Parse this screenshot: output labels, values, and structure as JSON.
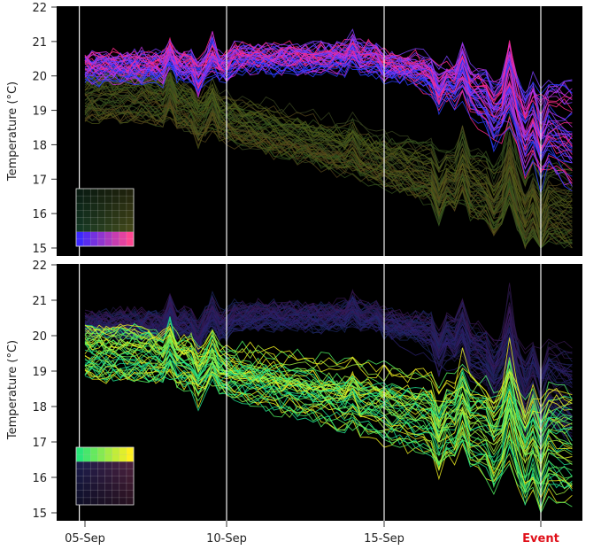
{
  "chart_data": [
    {
      "type": "line",
      "panel": "top",
      "title": "",
      "xlabel": "",
      "ylabel": "Temperature (°C)",
      "ylim": [
        15,
        22
      ],
      "yticks": [
        "15",
        "16",
        "17",
        "18",
        "19",
        "20",
        "21",
        "22"
      ],
      "xticks": [
        "05-Sep",
        "10-Sep",
        "15-Sep",
        "Event"
      ],
      "xtick_days": [
        0,
        5,
        10,
        15
      ],
      "xlim_days": [
        -0.5,
        16.2
      ],
      "vertical_lines_days": [
        -0.2,
        5,
        10,
        15
      ],
      "background": "#000000",
      "highlight": "blue-magenta",
      "legend_placement": "bottom-left",
      "highlight_colors": [
        "#2a3cff",
        "#7a40ff",
        "#c030e0",
        "#ff2a8a"
      ],
      "dim_colors": [
        "#3a5a20",
        "#55601a",
        "#5a4a1c",
        "#3c4a22"
      ],
      "series_profiles": {
        "highlight": {
          "start": [
            19.9,
            20.6
          ],
          "end": [
            16.7,
            19.7
          ]
        },
        "dim": {
          "start": [
            18.8,
            20.2
          ],
          "end": [
            15.0,
            17.4
          ]
        }
      }
    },
    {
      "type": "line",
      "panel": "bottom",
      "title": "",
      "xlabel": "",
      "ylabel": "Temperature (°C)",
      "ylim": [
        15,
        22
      ],
      "yticks": [
        "15",
        "16",
        "17",
        "18",
        "19",
        "20",
        "21",
        "22"
      ],
      "xticks": [
        "05-Sep",
        "10-Sep",
        "15-Sep",
        "Event"
      ],
      "xtick_days": [
        0,
        5,
        10,
        15
      ],
      "xlim_days": [
        -0.5,
        16.2
      ],
      "vertical_lines_days": [
        -0.2,
        5,
        10,
        15
      ],
      "background": "#000000",
      "highlight": "green-yellow",
      "legend_placement": "bottom-left",
      "highlight_colors": [
        "#20e090",
        "#50f060",
        "#a0f040",
        "#f0f020"
      ],
      "dim_colors": [
        "#1e2a66",
        "#2c2270",
        "#3a1a55",
        "#221a48"
      ],
      "series_profiles": {
        "highlight": {
          "start": [
            18.8,
            20.2
          ],
          "end": [
            15.2,
            18.5
          ]
        },
        "dim": {
          "start": [
            20.0,
            20.6
          ],
          "end": [
            17.0,
            19.6
          ]
        }
      }
    }
  ]
}
